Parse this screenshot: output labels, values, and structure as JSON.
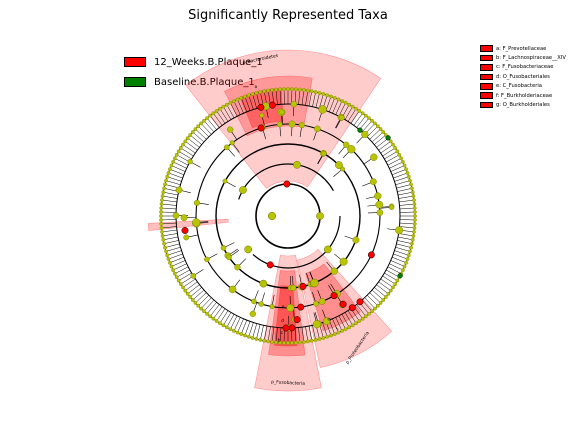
{
  "title": "Significantly Represented Taxa",
  "legend": [
    {
      "label": "12_Weeks.B.Plaque_1",
      "color": "#ff0000"
    },
    {
      "label": "Baseline.B.Plaque_1",
      "color": "#008000"
    }
  ],
  "key": [
    {
      "letter": "a",
      "label": "a: F_Prevotellaceae",
      "color": "#ff0000"
    },
    {
      "letter": "b",
      "label": "b: F_Lachnospiraceae__XIV",
      "color": "#ff0000"
    },
    {
      "letter": "c",
      "label": "c: F_Fusobacteriaceae",
      "color": "#ff0000"
    },
    {
      "letter": "d",
      "label": "d: O_Fusobacteriales",
      "color": "#ff0000"
    },
    {
      "letter": "e",
      "label": "e: C_Fusobacteria",
      "color": "#ff0000"
    },
    {
      "letter": "f",
      "label": "f: F_Burkholderiaceae",
      "color": "#ff0000"
    },
    {
      "letter": "g",
      "label": "g: O_Burkholderiales",
      "color": "#ff0000"
    }
  ],
  "colors": {
    "enriched": "#ff0000",
    "baseline": "#008000",
    "node": "#b8c400",
    "node_edge": "#6b7000"
  },
  "sector_labels": [
    {
      "text": "p_Bacteroidetes",
      "group": "12_Weeks.B.Plaque_1"
    },
    {
      "text": "p_Fusobacteria",
      "group": "12_Weeks.B.Plaque_1"
    },
    {
      "text": "p_Proteobacteria",
      "group": "12_Weeks.B.Plaque_1"
    },
    {
      "text": "a",
      "group": "12_Weeks.B.Plaque_1"
    },
    {
      "text": "b",
      "group": "12_Weeks.B.Plaque_1"
    },
    {
      "text": "c",
      "group": "12_Weeks.B.Plaque_1"
    },
    {
      "text": "d",
      "group": "12_Weeks.B.Plaque_1"
    },
    {
      "text": "e",
      "group": "12_Weeks.B.Plaque_1"
    },
    {
      "text": "f",
      "group": "12_Weeks.B.Plaque_1"
    },
    {
      "text": "g",
      "group": "12_Weeks.B.Plaque_1"
    }
  ],
  "chart_data": {
    "type": "cladogram",
    "title": "Significantly Represented Taxa",
    "series": [
      {
        "name": "12_Weeks.B.Plaque_1",
        "color": "#ff0000"
      },
      {
        "name": "Baseline.B.Plaque_1",
        "color": "#008000"
      }
    ],
    "highlighted_taxa": [
      {
        "taxon": "p_Bacteroidetes",
        "group": "12_Weeks.B.Plaque_1"
      },
      {
        "taxon": "F_Prevotellaceae",
        "group": "12_Weeks.B.Plaque_1"
      },
      {
        "taxon": "F_Lachnospiraceae__XIV",
        "group": "12_Weeks.B.Plaque_1"
      },
      {
        "taxon": "p_Fusobacteria",
        "group": "12_Weeks.B.Plaque_1"
      },
      {
        "taxon": "C_Fusobacteria",
        "group": "12_Weeks.B.Plaque_1"
      },
      {
        "taxon": "O_Fusobacteriales",
        "group": "12_Weeks.B.Plaque_1"
      },
      {
        "taxon": "F_Fusobacteriaceae",
        "group": "12_Weeks.B.Plaque_1"
      },
      {
        "taxon": "p_Proteobacteria",
        "group": "12_Weeks.B.Plaque_1"
      },
      {
        "taxon": "O_Burkholderiales",
        "group": "12_Weeks.B.Plaque_1"
      },
      {
        "taxon": "F_Burkholderiaceae",
        "group": "12_Weeks.B.Plaque_1"
      }
    ]
  }
}
